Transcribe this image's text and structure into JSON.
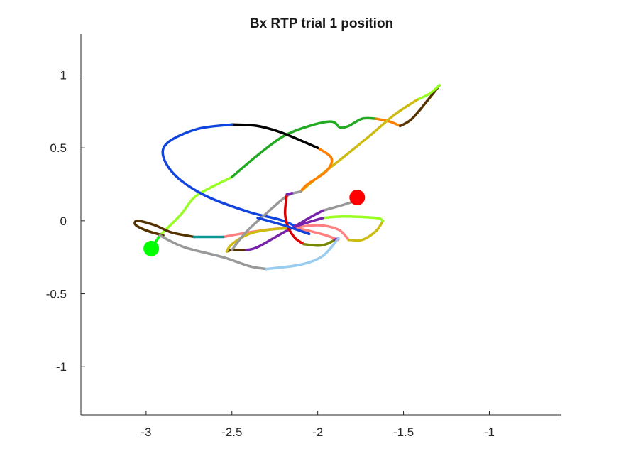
{
  "chart_data": {
    "type": "line",
    "title": "Bx  RTP trial 1 position",
    "xlabel": "",
    "ylabel": "",
    "xlim": [
      -3.38,
      -0.58
    ],
    "ylim": [
      -1.33,
      1.28
    ],
    "xticks": [
      -3,
      -2.5,
      -2,
      -1.5,
      -1
    ],
    "xtick_labels": [
      "-3",
      "-2.5",
      "-2",
      "-1.5",
      "-1"
    ],
    "yticks": [
      1,
      0.5,
      0,
      -0.5,
      -1
    ],
    "ytick_labels": [
      "1",
      "0.5",
      "0",
      "-0.5",
      "-1"
    ],
    "grid": false,
    "legend": "none",
    "start_marker": {
      "x": -2.97,
      "y": -0.19,
      "color": "#00ff00"
    },
    "end_marker": {
      "x": -1.77,
      "y": 0.16,
      "color": "#ff0000"
    },
    "segments": [
      {
        "color": "#00ff00",
        "points": [
          [
            -2.97,
            -0.19
          ],
          [
            -2.92,
            -0.1
          ]
        ]
      },
      {
        "color": "#99ff22",
        "points": [
          [
            -2.92,
            -0.1
          ],
          [
            -2.8,
            0.04
          ],
          [
            -2.72,
            0.16
          ],
          [
            -2.62,
            0.23
          ],
          [
            -2.5,
            0.3
          ]
        ]
      },
      {
        "color": "#22aa22",
        "points": [
          [
            -2.5,
            0.3
          ],
          [
            -2.35,
            0.45
          ],
          [
            -2.2,
            0.58
          ],
          [
            -2.05,
            0.65
          ],
          [
            -1.92,
            0.68
          ],
          [
            -1.87,
            0.64
          ],
          [
            -1.82,
            0.65
          ],
          [
            -1.74,
            0.7
          ],
          [
            -1.66,
            0.7
          ]
        ]
      },
      {
        "color": "#ff8000",
        "points": [
          [
            -1.66,
            0.7
          ],
          [
            -1.58,
            0.68
          ],
          [
            -1.52,
            0.65
          ]
        ]
      },
      {
        "color": "#553300",
        "points": [
          [
            -1.52,
            0.65
          ],
          [
            -1.45,
            0.7
          ],
          [
            -1.35,
            0.84
          ],
          [
            -1.29,
            0.93
          ]
        ]
      },
      {
        "color": "#99ff22",
        "points": [
          [
            -1.29,
            0.93
          ],
          [
            -1.35,
            0.87
          ],
          [
            -1.42,
            0.83
          ]
        ]
      },
      {
        "color": "#ccbb11",
        "points": [
          [
            -1.42,
            0.83
          ],
          [
            -1.55,
            0.73
          ],
          [
            -1.7,
            0.58
          ],
          [
            -1.9,
            0.39
          ],
          [
            -2.03,
            0.27
          ],
          [
            -2.1,
            0.2
          ]
        ]
      },
      {
        "color": "#ff8000",
        "points": [
          [
            -2.1,
            0.2
          ],
          [
            -2.06,
            0.25
          ],
          [
            -1.95,
            0.34
          ],
          [
            -1.92,
            0.43
          ],
          [
            -2.0,
            0.5
          ]
        ]
      },
      {
        "color": "#000000",
        "points": [
          [
            -2.0,
            0.5
          ],
          [
            -2.2,
            0.6
          ],
          [
            -2.35,
            0.65
          ],
          [
            -2.5,
            0.66
          ]
        ]
      },
      {
        "color": "#1144dd",
        "points": [
          [
            -2.5,
            0.66
          ],
          [
            -2.7,
            0.63
          ],
          [
            -2.87,
            0.54
          ],
          [
            -2.9,
            0.44
          ],
          [
            -2.82,
            0.3
          ],
          [
            -2.65,
            0.17
          ],
          [
            -2.4,
            0.06
          ],
          [
            -2.2,
            0.0
          ],
          [
            -2.05,
            -0.09
          ]
        ]
      },
      {
        "color": "#ff8080",
        "points": [
          [
            -2.55,
            -0.11
          ],
          [
            -2.35,
            -0.07
          ],
          [
            -2.15,
            -0.05
          ],
          [
            -1.98,
            -0.09
          ],
          [
            -1.88,
            -0.13
          ]
        ]
      },
      {
        "color": "#ff8080",
        "points": [
          [
            -2.15,
            -0.05
          ],
          [
            -2.0,
            -0.03
          ],
          [
            -1.88,
            -0.06
          ],
          [
            -1.82,
            -0.13
          ]
        ]
      },
      {
        "color": "#ccbb11",
        "points": [
          [
            -1.82,
            -0.13
          ],
          [
            -1.74,
            -0.13
          ],
          [
            -1.66,
            -0.07
          ],
          [
            -1.62,
            0.0
          ]
        ]
      },
      {
        "color": "#99ff22",
        "points": [
          [
            -1.62,
            0.0
          ],
          [
            -1.66,
            0.02
          ],
          [
            -1.85,
            0.03
          ],
          [
            -1.97,
            0.02
          ]
        ]
      },
      {
        "color": "#7722aa",
        "points": [
          [
            -1.97,
            0.02
          ],
          [
            -2.15,
            -0.05
          ],
          [
            -2.35,
            -0.18
          ],
          [
            -2.43,
            -0.2
          ]
        ]
      },
      {
        "color": "#553300",
        "points": [
          [
            -2.43,
            -0.2
          ],
          [
            -2.5,
            -0.2
          ],
          [
            -2.53,
            -0.21
          ]
        ]
      },
      {
        "color": "#ccbb11",
        "points": [
          [
            -2.53,
            -0.21
          ],
          [
            -2.5,
            -0.16
          ],
          [
            -2.4,
            -0.09
          ],
          [
            -2.28,
            -0.06
          ],
          [
            -2.15,
            -0.05
          ]
        ]
      },
      {
        "color": "#999999",
        "points": [
          [
            -2.5,
            -0.2
          ],
          [
            -2.42,
            -0.08
          ],
          [
            -2.3,
            0.05
          ],
          [
            -2.18,
            0.17
          ],
          [
            -2.1,
            0.2
          ]
        ]
      },
      {
        "color": "#999999",
        "points": [
          [
            -1.97,
            0.07
          ],
          [
            -1.85,
            0.11
          ],
          [
            -1.77,
            0.14
          ]
        ]
      },
      {
        "color": "#7722aa",
        "points": [
          [
            -2.15,
            -0.05
          ],
          [
            -2.05,
            0.02
          ],
          [
            -1.97,
            0.07
          ]
        ]
      },
      {
        "color": "#dd0000",
        "points": [
          [
            -2.18,
            0.18
          ],
          [
            -2.19,
            0.05
          ],
          [
            -2.17,
            -0.05
          ],
          [
            -2.13,
            -0.12
          ],
          [
            -2.08,
            -0.16
          ]
        ]
      },
      {
        "color": "#7722aa",
        "points": [
          [
            -2.18,
            0.18
          ],
          [
            -2.15,
            0.19
          ]
        ]
      },
      {
        "color": "#778800",
        "points": [
          [
            -2.08,
            -0.16
          ],
          [
            -2.0,
            -0.17
          ],
          [
            -1.95,
            -0.16
          ],
          [
            -1.9,
            -0.13
          ]
        ]
      },
      {
        "color": "#7722aa",
        "points": [
          [
            -1.9,
            -0.13
          ],
          [
            -1.88,
            -0.12
          ]
        ]
      },
      {
        "color": "#1144dd",
        "points": [
          [
            -2.35,
            0.02
          ],
          [
            -2.2,
            -0.03
          ],
          [
            -2.05,
            -0.09
          ]
        ]
      },
      {
        "color": "#553300",
        "points": [
          [
            -2.9,
            -0.1
          ],
          [
            -2.99,
            -0.07
          ],
          [
            -3.06,
            -0.03
          ],
          [
            -3.05,
            0.0
          ],
          [
            -2.95,
            -0.03
          ],
          [
            -2.85,
            -0.08
          ],
          [
            -2.72,
            -0.11
          ]
        ]
      },
      {
        "color": "#119999",
        "points": [
          [
            -2.72,
            -0.11
          ],
          [
            -2.6,
            -0.11
          ],
          [
            -2.55,
            -0.11
          ]
        ]
      },
      {
        "color": "#999999",
        "points": [
          [
            -2.92,
            -0.1
          ],
          [
            -2.78,
            -0.18
          ],
          [
            -2.55,
            -0.25
          ],
          [
            -2.4,
            -0.31
          ],
          [
            -2.3,
            -0.33
          ]
        ]
      },
      {
        "color": "#99ccee",
        "points": [
          [
            -2.3,
            -0.33
          ],
          [
            -2.1,
            -0.3
          ],
          [
            -1.97,
            -0.24
          ],
          [
            -1.88,
            -0.12
          ]
        ]
      }
    ]
  }
}
